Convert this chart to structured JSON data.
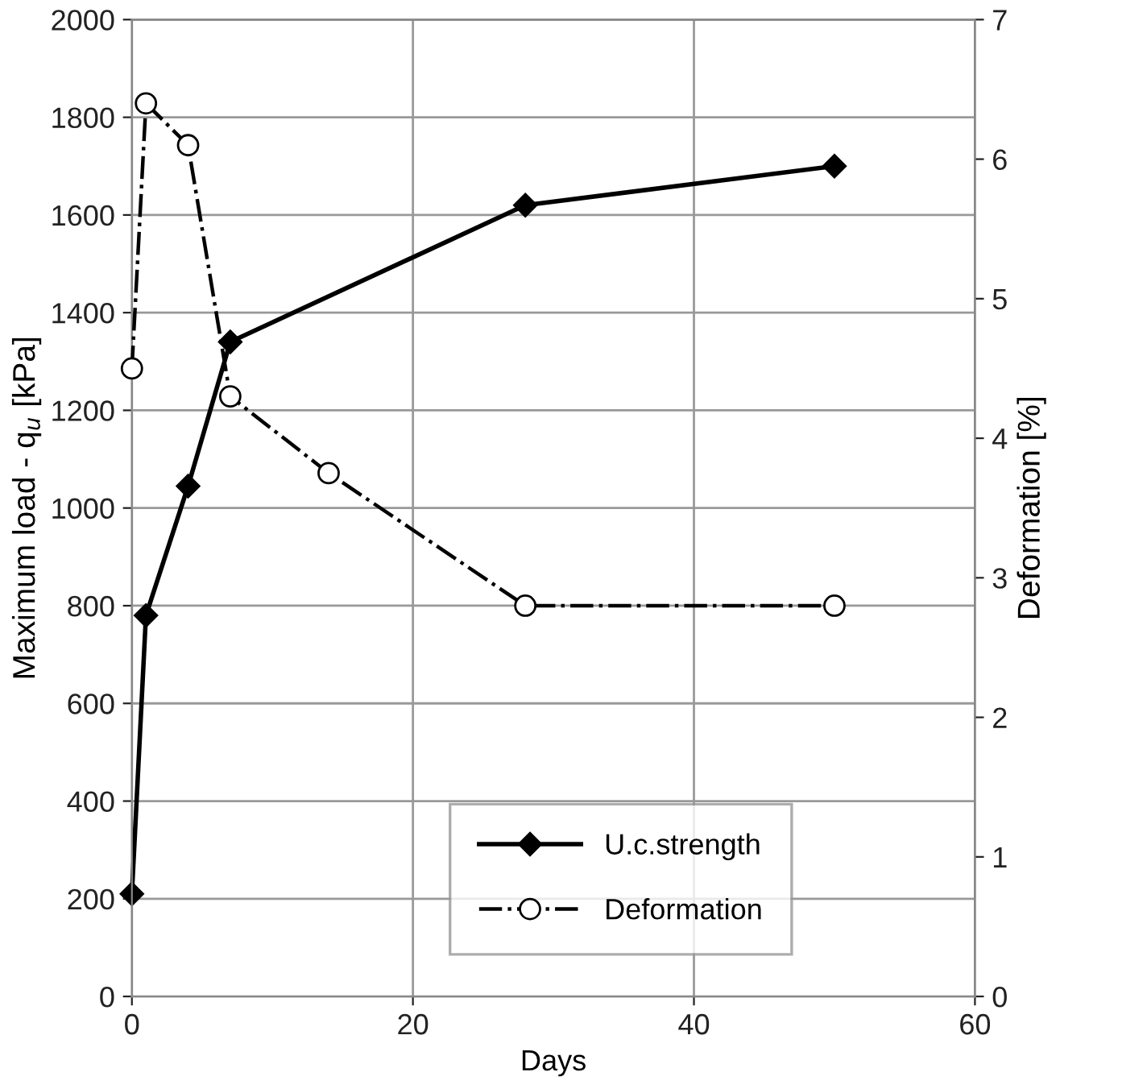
{
  "chart_data": {
    "type": "line",
    "xlabel": "Days",
    "ylabel": "Maximum load - q$_{u}$ [kPa]",
    "y2label": "Deformation [%]",
    "xlim": [
      0,
      60
    ],
    "xticks": [
      0,
      20,
      40,
      60
    ],
    "ylim": [
      0,
      2000
    ],
    "yticks": [
      0,
      200,
      400,
      600,
      800,
      1000,
      1200,
      1400,
      1600,
      1800,
      2000
    ],
    "y2lim": [
      0,
      7
    ],
    "y2ticks": [
      0,
      1,
      2,
      3,
      4,
      5,
      6,
      7
    ],
    "grid": true,
    "legend": "bottom right",
    "series": [
      {
        "name": "U.c.strength",
        "color": "#000000",
        "x": [
          0,
          1,
          4,
          7,
          28,
          50
        ],
        "values": [
          210,
          780,
          1045,
          1340,
          1620,
          1700
        ],
        "marker": "diamond",
        "line_style": "solid"
      },
      {
        "name": "Deformation",
        "color": "#000000",
        "axis": "y2",
        "x": [
          0,
          1,
          4,
          7,
          14,
          28,
          50
        ],
        "values": [
          4.5,
          6.4,
          6.1,
          4.3,
          3.75,
          2.8,
          2.8
        ],
        "marker": "circle",
        "line_style": "dashdot"
      }
    ]
  }
}
